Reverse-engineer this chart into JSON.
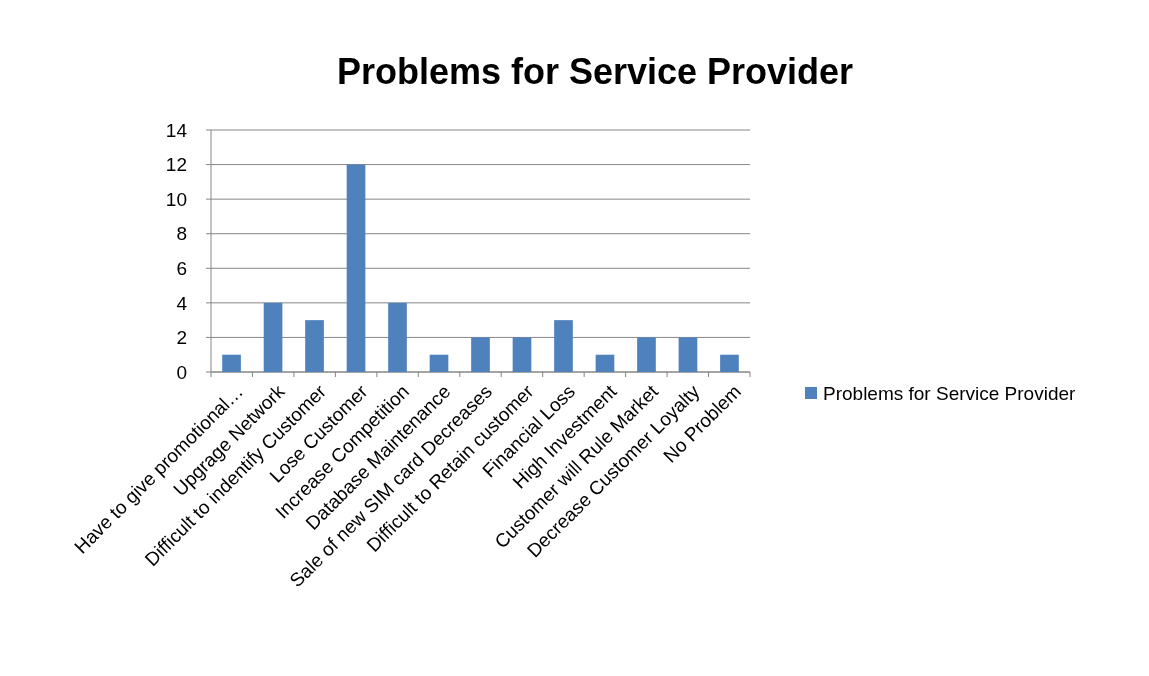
{
  "chart_data": {
    "type": "bar",
    "title": "Problems for Service Provider",
    "categories": [
      "Have to give promotional…",
      "Upgrage Network",
      "Difficult to indentify Customer",
      "Lose Customer",
      "Increase Competition",
      "Database Maintenance",
      "Sale of new SIM card Decreases",
      "Difficult to Retain customer",
      "Financial Loss",
      "High Investment",
      "Customer will Rule Market",
      "Decrease Customer Loyalty",
      "No Problem"
    ],
    "series": [
      {
        "name": "Problems for Service Provider",
        "color": "#4f81bd",
        "values": [
          1,
          4,
          3,
          12,
          4,
          1,
          2,
          2,
          3,
          1,
          2,
          2,
          1
        ]
      }
    ],
    "ylim": [
      0,
      14
    ],
    "yticks": [
      0,
      2,
      4,
      6,
      8,
      10,
      12,
      14
    ],
    "grid": "y",
    "legend": "right"
  }
}
